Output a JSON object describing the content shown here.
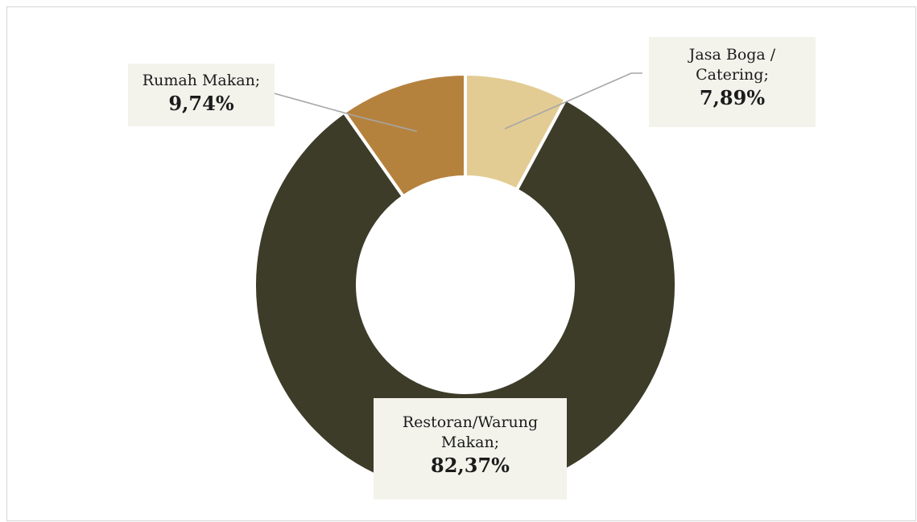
{
  "chart_data": {
    "type": "pie",
    "donut": true,
    "categories": [
      "Jasa Boga / Catering",
      "Restoran/Warung Makan",
      "Rumah Makan"
    ],
    "values": [
      7.89,
      82.37,
      9.74
    ],
    "colors": [
      "#e3cc93",
      "#3d3c29",
      "#b5823e"
    ],
    "labels": [
      {
        "category": "Jasa Boga / Catering",
        "category_line1": "Jasa Boga /",
        "category_line2": "Catering;",
        "value_text": "7,89%"
      },
      {
        "category": "Restoran/Warung Makan",
        "category_line1": "Restoran/Warung",
        "category_line2": "Makan;",
        "value_text": "82,37%"
      },
      {
        "category": "Rumah Makan",
        "category_line1": "Rumah Makan;",
        "value_text": "9,74%"
      }
    ],
    "legend": "none"
  }
}
